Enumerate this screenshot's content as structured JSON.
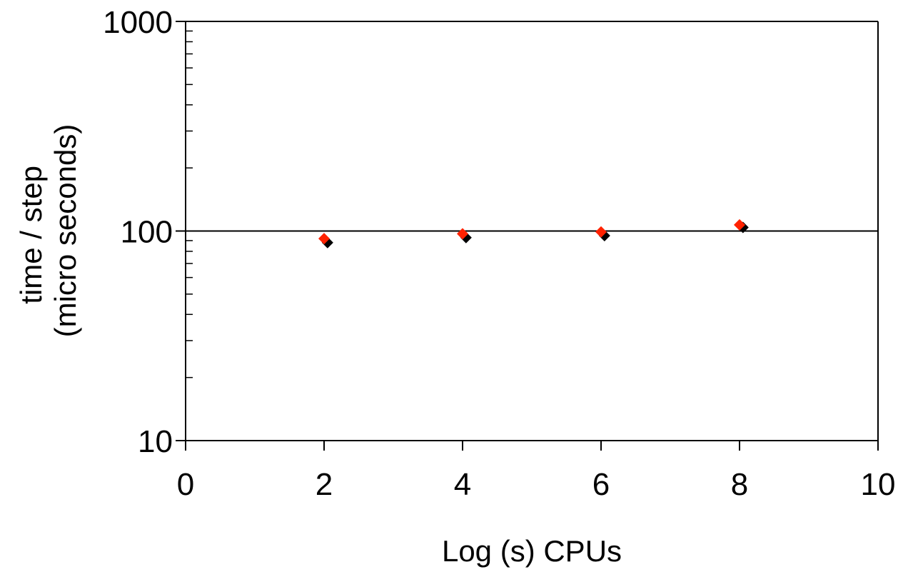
{
  "chart_data": {
    "type": "scatter",
    "title": "",
    "xlabel": "Log (s) CPUs",
    "ylabel_lines": [
      "time / step",
      "(micro seconds)"
    ],
    "x_range": [
      0,
      10
    ],
    "x_ticks": [
      0,
      2,
      4,
      6,
      8,
      10
    ],
    "x_tick_labels": [
      "0",
      "2",
      "4",
      "6",
      "8",
      "10"
    ],
    "y_scale": "log",
    "y_range": [
      10,
      1000
    ],
    "y_ticks": [
      10,
      100,
      1000
    ],
    "y_tick_labels": [
      "10",
      "100",
      "1000"
    ],
    "reference_line": {
      "y": 100
    },
    "grid": false,
    "legend": "none",
    "series": [
      {
        "color": "#000000",
        "marker": "diamond",
        "x": [
          2.05,
          4.05,
          6.05,
          8.05
        ],
        "y": [
          88,
          93,
          95,
          104
        ]
      },
      {
        "color": "#ff2200",
        "marker": "diamond",
        "x": [
          2.0,
          4.0,
          6.0,
          8.0
        ],
        "y": [
          92,
          97,
          99,
          107
        ]
      }
    ]
  }
}
